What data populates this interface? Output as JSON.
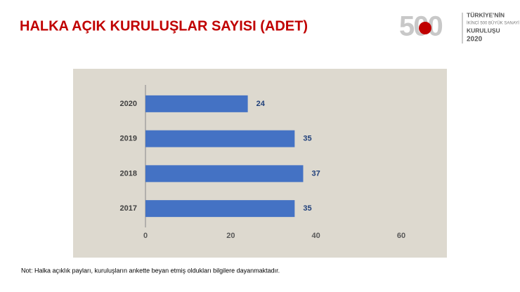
{
  "title": "HALKA AÇIK KURULUŞLAR SAYISI (ADET)",
  "logo": {
    "number": "500",
    "line1": "TÜRKİYE'NİN",
    "line2": "İKİNCİ 500 BÜYÜK SANAYİ",
    "line3": "KURULUŞU",
    "year": "2020"
  },
  "note": "Not: Halka açıklık payları, kuruluşların ankette beyan etmiş oldukları bilgilere dayanmaktadır.",
  "chart_data": {
    "type": "barh",
    "categories": [
      "2020",
      "2019",
      "2018",
      "2017"
    ],
    "values": [
      24,
      35,
      37,
      35
    ],
    "color": "#4472c4",
    "xlim": [
      0,
      60
    ],
    "xticks": [
      0,
      20,
      40,
      60
    ],
    "grid": false
  }
}
